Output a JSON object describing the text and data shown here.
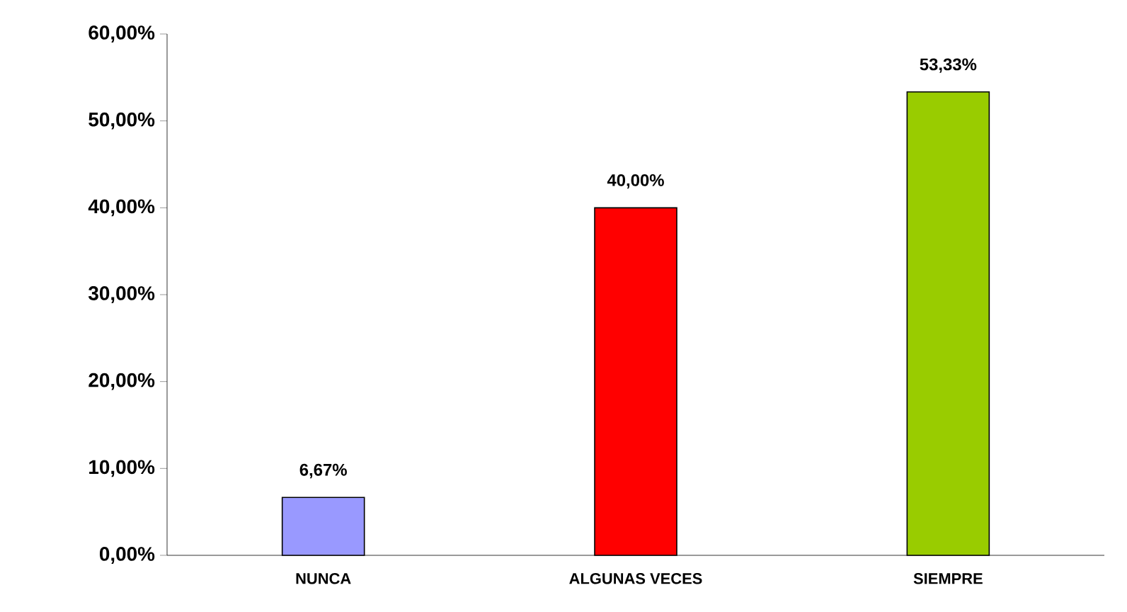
{
  "chart_data": {
    "type": "bar",
    "categories": [
      "NUNCA",
      "ALGUNAS VECES",
      "SIEMPRE"
    ],
    "values": [
      6.67,
      40.0,
      53.33
    ],
    "colors": [
      "#9999ff",
      "#ff0000",
      "#99cc00"
    ],
    "value_labels": [
      "6,67%",
      "40,00%",
      "53,33%"
    ],
    "ylim": [
      0,
      60
    ],
    "yticks": [
      {
        "value": 0,
        "label": "0,00%"
      },
      {
        "value": 10,
        "label": "10,00%"
      },
      {
        "value": 20,
        "label": "20,00%"
      },
      {
        "value": 30,
        "label": "30,00%"
      },
      {
        "value": 40,
        "label": "40,00%"
      },
      {
        "value": 50,
        "label": "50,00%"
      },
      {
        "value": 60,
        "label": "60,00%"
      }
    ],
    "grid": false
  }
}
